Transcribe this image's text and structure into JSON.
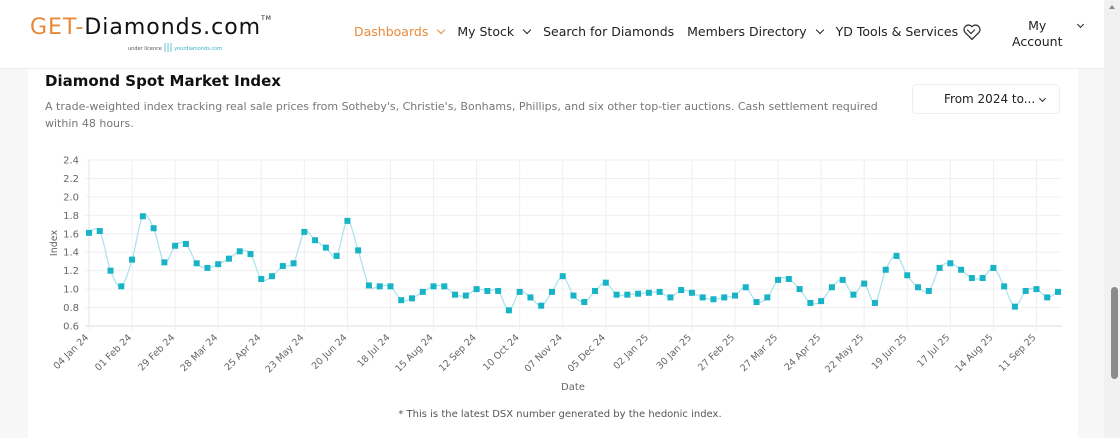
{
  "logo": {
    "get": "GET-",
    "rest": "Diamonds.com",
    "tm": "TM",
    "sub_left": "under licence",
    "sub_right": "yourdiamonds.com"
  },
  "nav": {
    "items": [
      {
        "label": "Dashboards",
        "dropdown": true,
        "active": true
      },
      {
        "label": "My Stock",
        "dropdown": true
      },
      {
        "label": "Search for Diamonds",
        "dropdown": false
      },
      {
        "label": "Members Directory",
        "dropdown": true
      },
      {
        "label": "YD Tools & Services",
        "dropdown": true
      }
    ],
    "favorites_icon": "heart-icon",
    "account_line1": "My",
    "account_line2": "Account"
  },
  "colors": {
    "accent": "#e8893a",
    "series": "#17b3c6",
    "line": "#a8e2ea"
  },
  "card": {
    "title": "Diamond Spot Market Index",
    "description": "A trade-weighted index tracking real sale prices from Sotheby's, Christie's, Bonhams, Phillips, and six other top-tier auctions. Cash settlement required within 48 hours.",
    "range_select": "From 2024 to...",
    "footnote": "* This is the latest DSX number generated by the hedonic index."
  },
  "chart_data": {
    "type": "line",
    "xlabel": "Date",
    "ylabel": "Index",
    "ylim": [
      0.6,
      2.4
    ],
    "grid": true,
    "yticks": [
      "0.6",
      "0.8",
      "1.0",
      "1.2",
      "1.4",
      "1.6",
      "1.8",
      "2.0",
      "2.2",
      "2.4"
    ],
    "xticks": [
      "04 Jan 24",
      "01 Feb 24",
      "29 Feb 24",
      "28 Mar 24",
      "25 Apr 24",
      "23 May 24",
      "20 Jun 24",
      "18 Jul 24",
      "15 Aug 24",
      "12 Sep 24",
      "10 Oct 24",
      "07 Nov 24",
      "05 Dec 24",
      "02 Jan 25",
      "30 Jan 25",
      "27 Feb 25",
      "27 Mar 25",
      "24 Apr 25",
      "22 May 25",
      "19 Jun 25",
      "17 Jul 25",
      "14 Aug 25",
      "11 Sep 25"
    ],
    "x": [
      "2024-01-04",
      "2024-01-11",
      "2024-01-18",
      "2024-01-25",
      "2024-02-01",
      "2024-02-08",
      "2024-02-15",
      "2024-02-22",
      "2024-02-29",
      "2024-03-07",
      "2024-03-14",
      "2024-03-21",
      "2024-03-28",
      "2024-04-04",
      "2024-04-11",
      "2024-04-18",
      "2024-04-25",
      "2024-05-02",
      "2024-05-09",
      "2024-05-16",
      "2024-05-23",
      "2024-05-30",
      "2024-06-06",
      "2024-06-13",
      "2024-06-20",
      "2024-06-27",
      "2024-07-04",
      "2024-07-11",
      "2024-07-18",
      "2024-07-25",
      "2024-08-01",
      "2024-08-08",
      "2024-08-15",
      "2024-08-22",
      "2024-08-29",
      "2024-09-05",
      "2024-09-12",
      "2024-09-19",
      "2024-09-26",
      "2024-10-03",
      "2024-10-10",
      "2024-10-17",
      "2024-10-24",
      "2024-10-31",
      "2024-11-07",
      "2024-11-14",
      "2024-11-21",
      "2024-11-28",
      "2024-12-05",
      "2024-12-12",
      "2024-12-19",
      "2024-12-26",
      "2025-01-02",
      "2025-01-09",
      "2025-01-16",
      "2025-01-23",
      "2025-01-30",
      "2025-02-06",
      "2025-02-13",
      "2025-02-20",
      "2025-02-27",
      "2025-03-06",
      "2025-03-13",
      "2025-03-20",
      "2025-03-27",
      "2025-04-03",
      "2025-04-10",
      "2025-04-17",
      "2025-04-24",
      "2025-05-01",
      "2025-05-08",
      "2025-05-15",
      "2025-05-22",
      "2025-05-29",
      "2025-06-05",
      "2025-06-12",
      "2025-06-19",
      "2025-06-26",
      "2025-07-03",
      "2025-07-10",
      "2025-07-17",
      "2025-07-24",
      "2025-07-31",
      "2025-08-07",
      "2025-08-14",
      "2025-08-21",
      "2025-08-28",
      "2025-09-04",
      "2025-09-11",
      "2025-09-18",
      "2025-09-25"
    ],
    "values": [
      1.61,
      1.63,
      1.2,
      1.03,
      1.32,
      1.79,
      1.66,
      1.29,
      1.47,
      1.49,
      1.28,
      1.23,
      1.27,
      1.33,
      1.41,
      1.38,
      1.11,
      1.14,
      1.25,
      1.28,
      1.62,
      1.53,
      1.45,
      1.36,
      1.74,
      1.42,
      1.04,
      1.03,
      1.03,
      0.88,
      0.9,
      0.97,
      1.03,
      1.03,
      0.94,
      0.93,
      1.0,
      0.98,
      0.98,
      0.77,
      0.97,
      0.91,
      0.82,
      0.97,
      1.14,
      0.93,
      0.86,
      0.98,
      1.07,
      0.94,
      0.94,
      0.95,
      0.96,
      0.97,
      0.91,
      0.99,
      0.96,
      0.91,
      0.89,
      0.91,
      0.93,
      1.02,
      0.86,
      0.91,
      1.1,
      1.11,
      1.0,
      0.85,
      0.87,
      1.02,
      1.1,
      0.94,
      1.06,
      0.85,
      1.21,
      1.36,
      1.15,
      1.02,
      0.98,
      1.23,
      1.28,
      1.21,
      1.12,
      1.12,
      1.23,
      1.03,
      0.81,
      0.98,
      1.0,
      0.91,
      0.97
    ]
  }
}
